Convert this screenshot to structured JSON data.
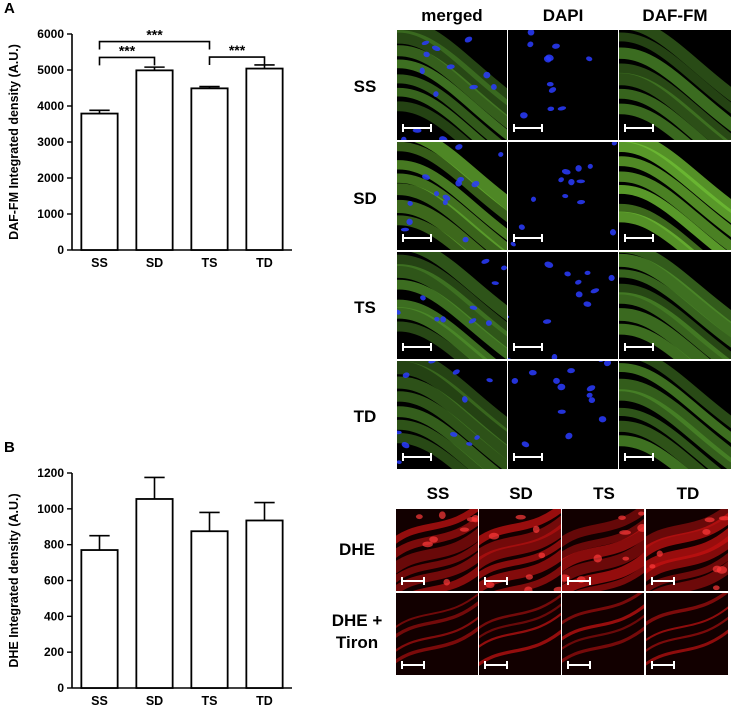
{
  "panel_a": {
    "letter": "A",
    "chart_data": {
      "type": "bar",
      "categories": [
        "SS",
        "SD",
        "TS",
        "TD"
      ],
      "values": [
        3790,
        4990,
        4490,
        5040
      ],
      "errors": [
        90,
        90,
        50,
        100
      ],
      "ylabel": "DAF-FM Integrated density (A.U.)",
      "ylim": [
        0,
        6000
      ],
      "yticks": [
        0,
        1000,
        2000,
        3000,
        4000,
        5000,
        6000
      ],
      "significance": [
        {
          "from": "SS",
          "to": "TS",
          "label": "***",
          "value": 5790
        },
        {
          "from": "SS",
          "to": "SD",
          "label": "***",
          "value": 5350
        },
        {
          "from": "TS",
          "to": "TD",
          "label": "***",
          "value": 5360
        }
      ]
    },
    "images": {
      "columns": [
        "merged",
        "DAPI",
        "DAF-FM"
      ],
      "rows": [
        "SS",
        "SD",
        "TS",
        "TD"
      ]
    }
  },
  "panel_b": {
    "letter": "B",
    "chart_data": {
      "type": "bar",
      "categories": [
        "SS",
        "SD",
        "TS",
        "TD"
      ],
      "values": [
        770,
        1055,
        875,
        935
      ],
      "errors": [
        80,
        120,
        105,
        100
      ],
      "ylabel": "DHE Integrated density (A.U.)",
      "ylim": [
        0,
        1200
      ],
      "yticks": [
        0,
        200,
        400,
        600,
        800,
        1000,
        1200
      ]
    },
    "images": {
      "columns": [
        "SS",
        "SD",
        "TS",
        "TD"
      ],
      "row1": "DHE",
      "row2_line1": "DHE +",
      "row2_line2": "Tiron"
    }
  },
  "colors": {
    "daf_green": "#5fae2c",
    "dapi_blue": "#1a2bd8",
    "dhe_red": "#c81212"
  }
}
